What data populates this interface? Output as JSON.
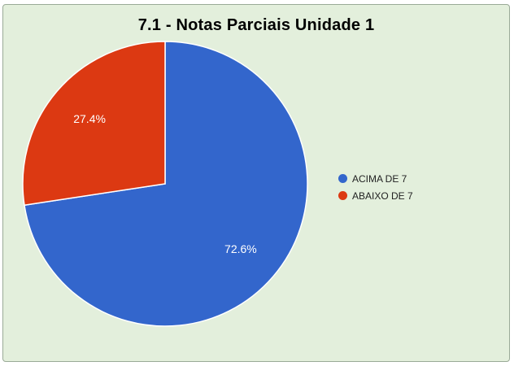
{
  "chart_data": {
    "type": "pie",
    "title": "7.1 - Notas Parciais Unidade 1",
    "legend_position": "right",
    "slices": [
      {
        "label": "ACIMA DE 7",
        "value": 72.6,
        "display": "72.6%",
        "color": "#3366cc"
      },
      {
        "label": "ABAIXO DE 7",
        "value": 27.4,
        "display": "27.4%",
        "color": "#dc3912"
      }
    ]
  },
  "colors": {
    "background": "#e3efdc",
    "slice_border": "#ffffff"
  }
}
